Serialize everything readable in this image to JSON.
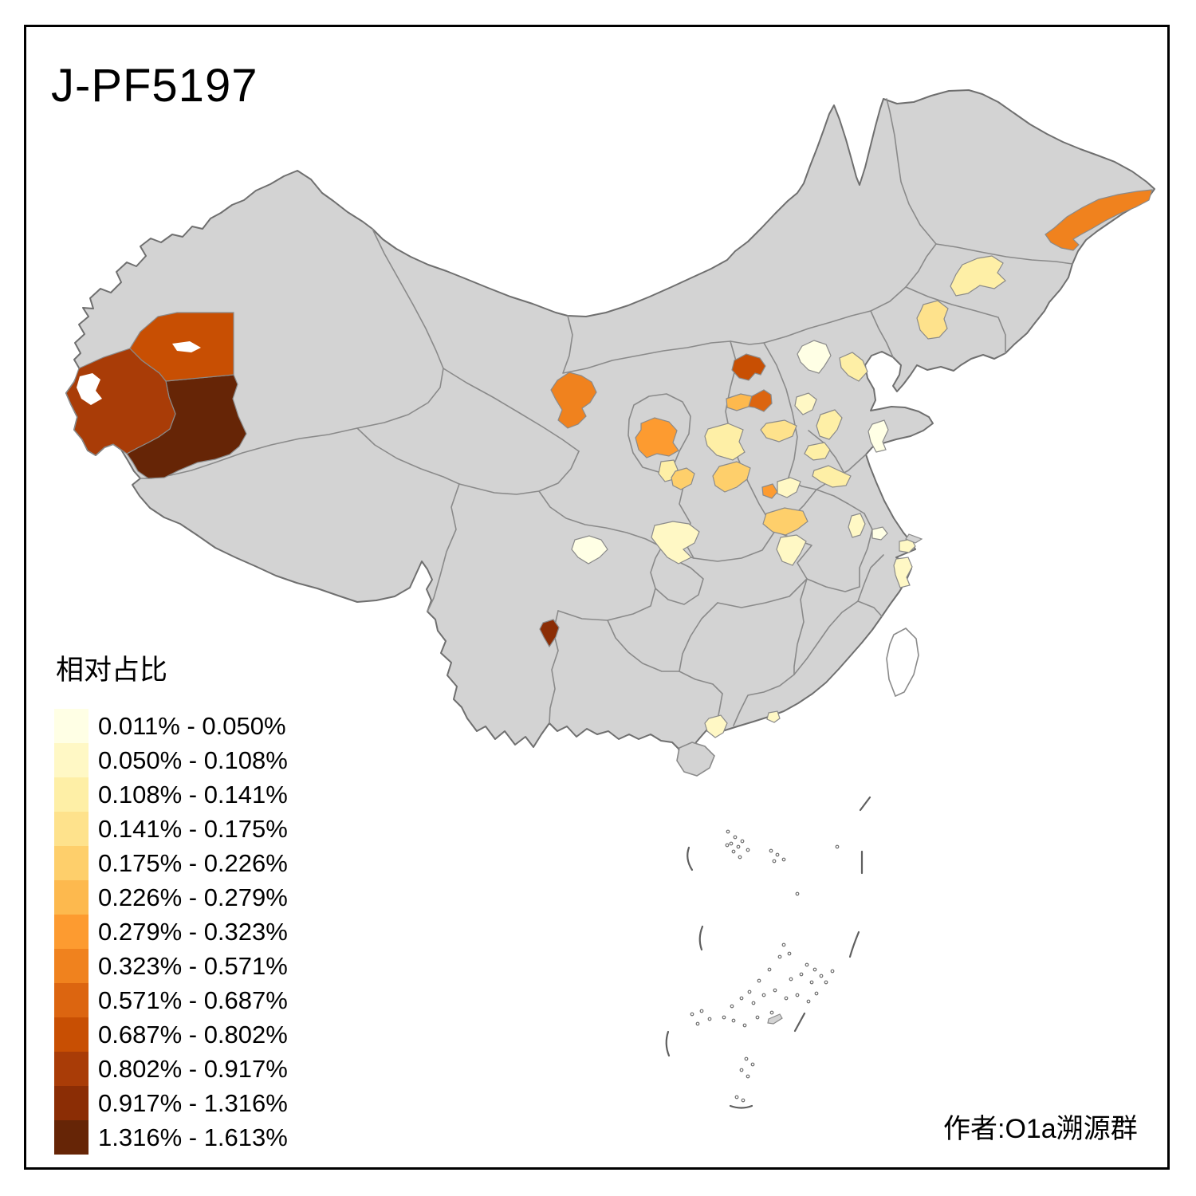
{
  "title": "J-PF5197",
  "credit": "作者:O1a溯源群",
  "legend": {
    "title": "相对占比",
    "classes": [
      {
        "label": "0.011% - 0.050%",
        "color": "#FFFFE5"
      },
      {
        "label": "0.050% - 0.108%",
        "color": "#FFF8C5"
      },
      {
        "label": "0.108% - 0.141%",
        "color": "#FEEFA6"
      },
      {
        "label": "0.141% - 0.175%",
        "color": "#FEE28C"
      },
      {
        "label": "0.175% - 0.226%",
        "color": "#FECF6B"
      },
      {
        "label": "0.226% - 0.279%",
        "color": "#FDB94E"
      },
      {
        "label": "0.279% - 0.323%",
        "color": "#FD9B30"
      },
      {
        "label": "0.323% - 0.571%",
        "color": "#F0821E"
      },
      {
        "label": "0.571% - 0.687%",
        "color": "#DC6510"
      },
      {
        "label": "0.687% - 0.802%",
        "color": "#C84F03"
      },
      {
        "label": "0.802% - 0.917%",
        "color": "#A93C07"
      },
      {
        "label": "0.917% - 1.316%",
        "color": "#8B2D05"
      },
      {
        "label": "1.316% - 1.613%",
        "color": "#662506"
      }
    ]
  },
  "map_style": {
    "land_color": "#d3d3d3",
    "border_color": "#8a8a8a",
    "outline_color": "#6f6f6f",
    "sea_color": "#ffffff"
  },
  "chart_data": {
    "type": "choropleth-map",
    "title": "J-PF5197",
    "legend_title": "相对占比",
    "regions": [
      {
        "id": "xinjiang-hotan",
        "class_index": 13,
        "range": "1.316% - 1.613%"
      },
      {
        "id": "xinjiang-kashgar",
        "class_index": 11,
        "range": "0.802% - 0.917%"
      },
      {
        "id": "xinjiang-aksu",
        "class_index": 10,
        "range": "0.687% - 0.802%"
      },
      {
        "id": "heilongjiang-northeast",
        "class_index": 8,
        "range": "0.323% - 0.571%"
      },
      {
        "id": "jilin-central",
        "class_index": 3,
        "range": "0.108% - 0.141%"
      },
      {
        "id": "liaoning-central",
        "class_index": 4,
        "range": "0.141% - 0.175%"
      },
      {
        "id": "shanxi-datong",
        "class_index": 10,
        "range": "0.687% - 0.802%"
      },
      {
        "id": "beijing",
        "class_index": 1,
        "range": "0.011% - 0.050%"
      },
      {
        "id": "hebei-northeast",
        "class_index": 3,
        "range": "0.108% - 0.141%"
      },
      {
        "id": "shijiazhuang-west",
        "class_index": 6,
        "range": "0.226% - 0.279%"
      },
      {
        "id": "shanxi-yangquan",
        "class_index": 9,
        "range": "0.571% - 0.687%"
      },
      {
        "id": "hebei-baoding-south",
        "class_index": 2,
        "range": "0.050% - 0.108%"
      },
      {
        "id": "hebei-south",
        "class_index": 3,
        "range": "0.108% - 0.141%"
      },
      {
        "id": "hebei-handan",
        "class_index": 4,
        "range": "0.141% - 0.175%"
      },
      {
        "id": "shandong-jinan",
        "class_index": 3,
        "range": "0.108% - 0.141%"
      },
      {
        "id": "shandong-west",
        "class_index": 3,
        "range": "0.108% - 0.141%"
      },
      {
        "id": "shandong-south",
        "class_index": 3,
        "range": "0.108% - 0.141%"
      },
      {
        "id": "shandong-qingdao",
        "class_index": 1,
        "range": "0.011% - 0.050%"
      },
      {
        "id": "gansu-wuwei",
        "class_index": 8,
        "range": "0.323% - 0.571%"
      },
      {
        "id": "ningxia-guyuan",
        "class_index": 7,
        "range": "0.279% - 0.323%"
      },
      {
        "id": "gansu-pingliang",
        "class_index": 3,
        "range": "0.108% - 0.141%"
      },
      {
        "id": "gansu-qingyang",
        "class_index": 5,
        "range": "0.175% - 0.226%"
      },
      {
        "id": "shanxi-luliang",
        "class_index": 5,
        "range": "0.175% - 0.226%"
      },
      {
        "id": "shanxi-linfen",
        "class_index": 7,
        "range": "0.279% - 0.323%"
      },
      {
        "id": "shanxi-yuncheng",
        "class_index": 2,
        "range": "0.050% - 0.108%"
      },
      {
        "id": "henan-sanmenxia",
        "class_index": 5,
        "range": "0.175% - 0.226%"
      },
      {
        "id": "henan-nanyang",
        "class_index": 2,
        "range": "0.050% - 0.108%"
      },
      {
        "id": "anhui-chuzhou",
        "class_index": 2,
        "range": "0.050% - 0.108%"
      },
      {
        "id": "anhui-east",
        "class_index": 1,
        "range": "0.011% - 0.050%"
      },
      {
        "id": "shanghai",
        "class_index": 2,
        "range": "0.050% - 0.108%"
      },
      {
        "id": "zhejiang-ningbo",
        "class_index": 2,
        "range": "0.050% - 0.108%"
      },
      {
        "id": "sichuan-chengdu",
        "class_index": 1,
        "range": "0.011% - 0.050%"
      },
      {
        "id": "sichuan-northeast",
        "class_index": 2,
        "range": "0.050% - 0.108%"
      },
      {
        "id": "sichuan-panzhihua",
        "class_index": 12,
        "range": "0.917% - 1.316%"
      },
      {
        "id": "guangdong-maoming",
        "class_index": 2,
        "range": "0.050% - 0.108%"
      },
      {
        "id": "guangdong-shenzhen",
        "class_index": 2,
        "range": "0.050% - 0.108%"
      }
    ]
  }
}
